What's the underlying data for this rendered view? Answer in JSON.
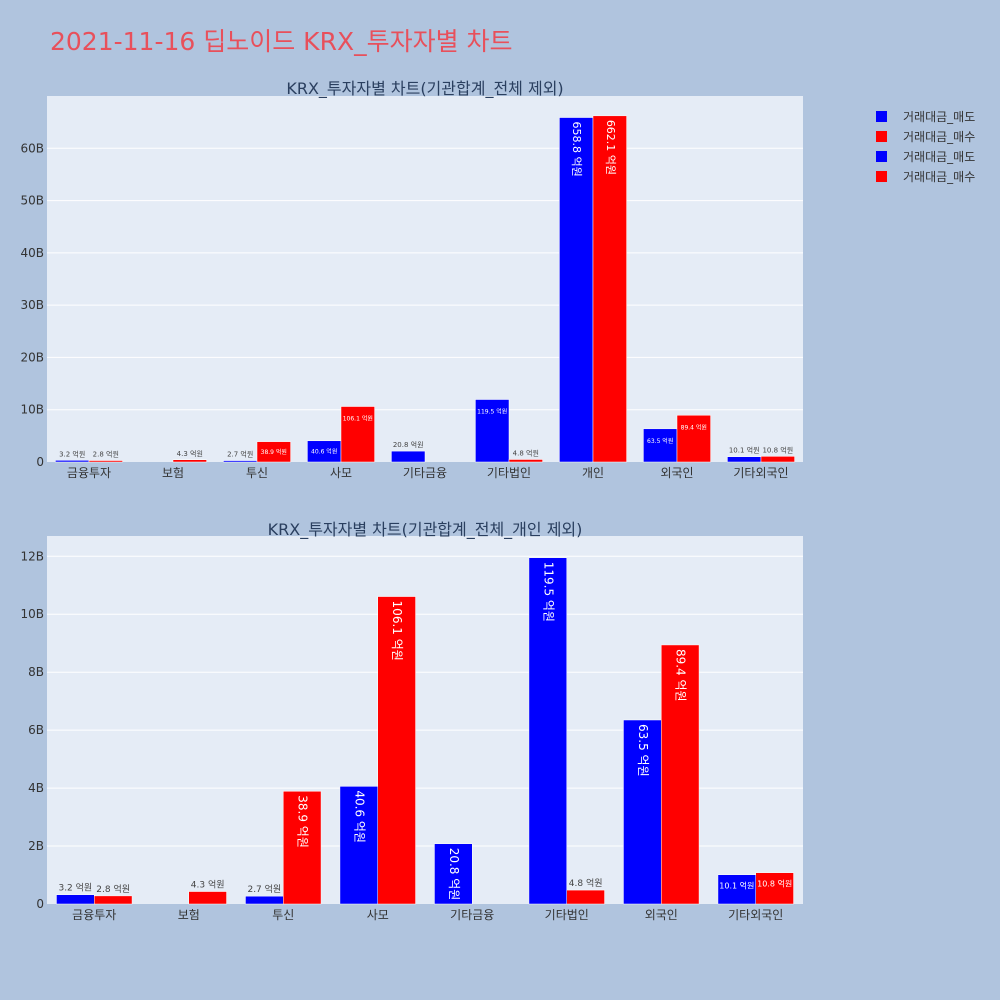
{
  "page_title": "2021-11-16 딥노이드 KRX_투자자별 차트",
  "legend": [
    {
      "label": "거래대금_매도",
      "color": "#0000ff"
    },
    {
      "label": "거래대금_매수",
      "color": "#ff0000"
    },
    {
      "label": "거래대금_매도",
      "color": "#0000ff"
    },
    {
      "label": "거래대금_매수",
      "color": "#ff0000"
    }
  ],
  "colors": {
    "sell": "#0000ff",
    "buy": "#ff0000",
    "plot_bg": "#e5ecf6",
    "page_bg": "#b0c4de"
  },
  "chart_data": [
    {
      "type": "bar",
      "title": "KRX_투자자별 차트(기관합계_전체 제외)",
      "categories": [
        "금융투자",
        "보험",
        "투신",
        "사모",
        "기타금융",
        "기타법인",
        "개인",
        "외국인",
        "기타외국인"
      ],
      "ylim": [
        0,
        70
      ],
      "ytick_values": [
        0,
        10,
        20,
        30,
        40,
        50,
        60
      ],
      "ytick_labels": [
        "0",
        "10B",
        "20B",
        "30B",
        "40B",
        "50B",
        "60B"
      ],
      "series": [
        {
          "name": "거래대금_매도",
          "color": "#0000ff",
          "values": [
            0.32,
            0,
            0.27,
            4.06,
            2.08,
            11.95,
            65.88,
            6.35,
            1.01
          ],
          "labels": [
            "3.2 억원",
            "",
            "2.7 억원",
            "40.6 억원",
            "20.8 억원",
            "119.5 억원",
            "658.8 억원",
            "63.5 억원",
            "10.1 억원"
          ]
        },
        {
          "name": "거래대금_매수",
          "color": "#ff0000",
          "values": [
            0.28,
            0.43,
            3.89,
            10.61,
            0,
            0.48,
            66.21,
            8.94,
            1.08
          ],
          "labels": [
            "2.8 억원",
            "4.3 억원",
            "38.9 억원",
            "106.1 억원",
            "",
            "4.8 억원",
            "662.1 억원",
            "89.4 억원",
            "10.8 억원"
          ]
        }
      ]
    },
    {
      "type": "bar",
      "title": "KRX_투자자별 차트(기관합계_전체_개인 제외)",
      "categories": [
        "금융투자",
        "보험",
        "투신",
        "사모",
        "기타금융",
        "기타법인",
        "외국인",
        "기타외국인"
      ],
      "ylim": [
        0,
        12.7
      ],
      "ytick_values": [
        0,
        2,
        4,
        6,
        8,
        10,
        12
      ],
      "ytick_labels": [
        "0",
        "2B",
        "4B",
        "6B",
        "8B",
        "10B",
        "12B"
      ],
      "series": [
        {
          "name": "거래대금_매도",
          "color": "#0000ff",
          "values": [
            0.32,
            0,
            0.27,
            4.06,
            2.08,
            11.95,
            6.35,
            1.01
          ],
          "labels": [
            "3.2 억원",
            "",
            "2.7 억원",
            "40.6 억원",
            "20.8 억원",
            "119.5 억원",
            "63.5 억원",
            "10.1 억원"
          ]
        },
        {
          "name": "거래대금_매수",
          "color": "#ff0000",
          "values": [
            0.28,
            0.43,
            3.89,
            10.61,
            0,
            0.48,
            8.94,
            1.08
          ],
          "labels": [
            "2.8 억원",
            "4.3 억원",
            "38.9 억원",
            "106.1 억원",
            "",
            "4.8 억원",
            "89.4 억원",
            "10.8 억원"
          ]
        }
      ]
    }
  ]
}
